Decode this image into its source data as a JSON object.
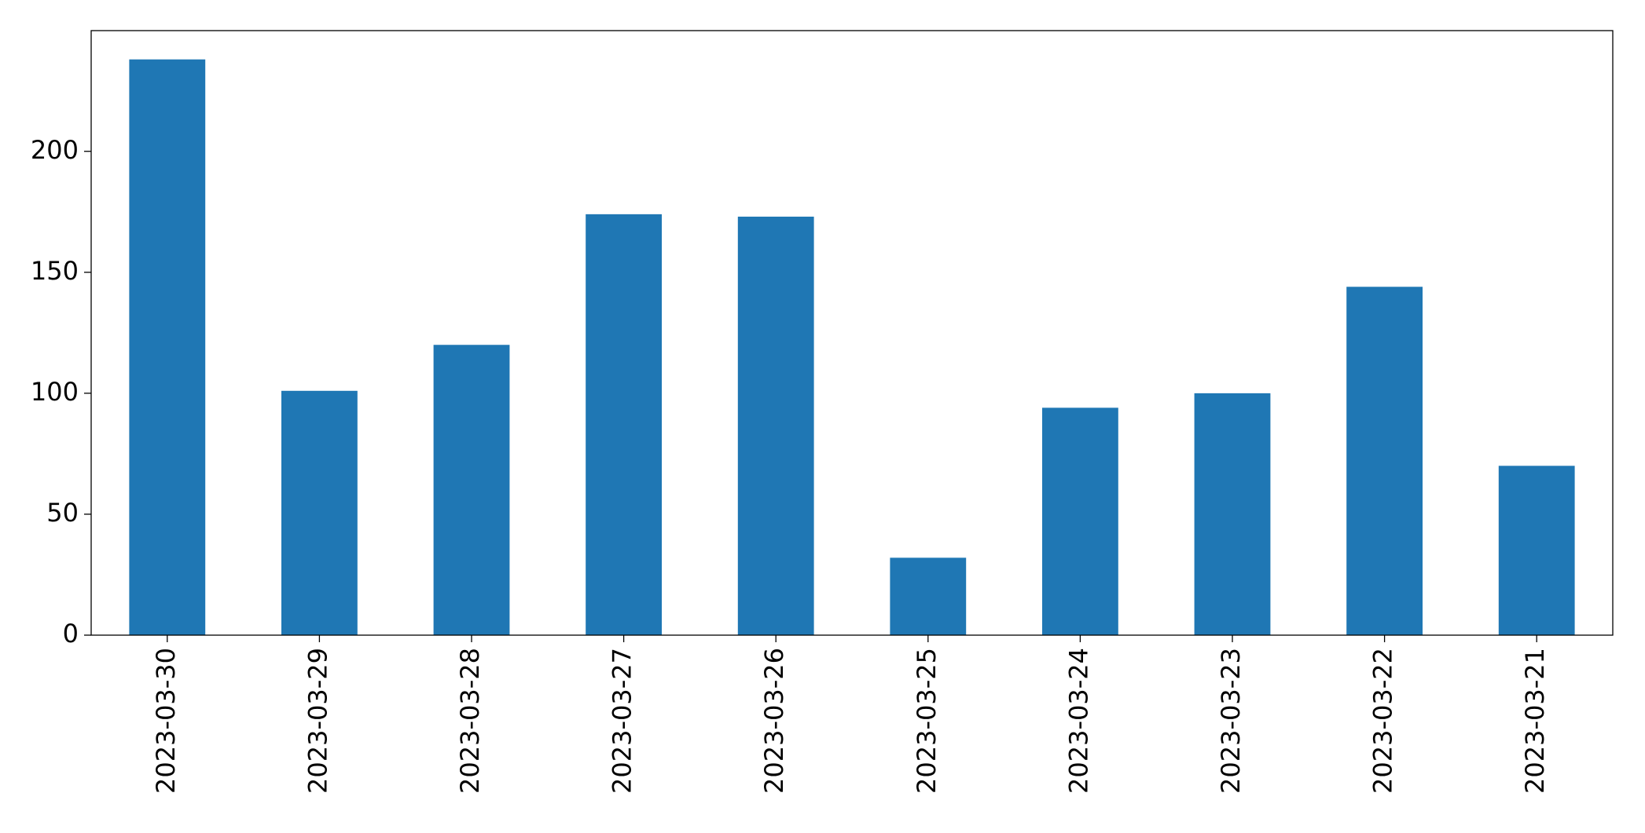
{
  "chart_data": {
    "type": "bar",
    "categories": [
      "2023-03-30",
      "2023-03-29",
      "2023-03-28",
      "2023-03-27",
      "2023-03-26",
      "2023-03-25",
      "2023-03-24",
      "2023-03-23",
      "2023-03-22",
      "2023-03-21"
    ],
    "values": [
      238,
      101,
      120,
      174,
      173,
      32,
      94,
      100,
      144,
      70
    ],
    "color": "#1f77b4",
    "ylim": [
      0,
      249.9
    ],
    "yticks": [
      0,
      50,
      100,
      150,
      200
    ],
    "grid": false
  }
}
